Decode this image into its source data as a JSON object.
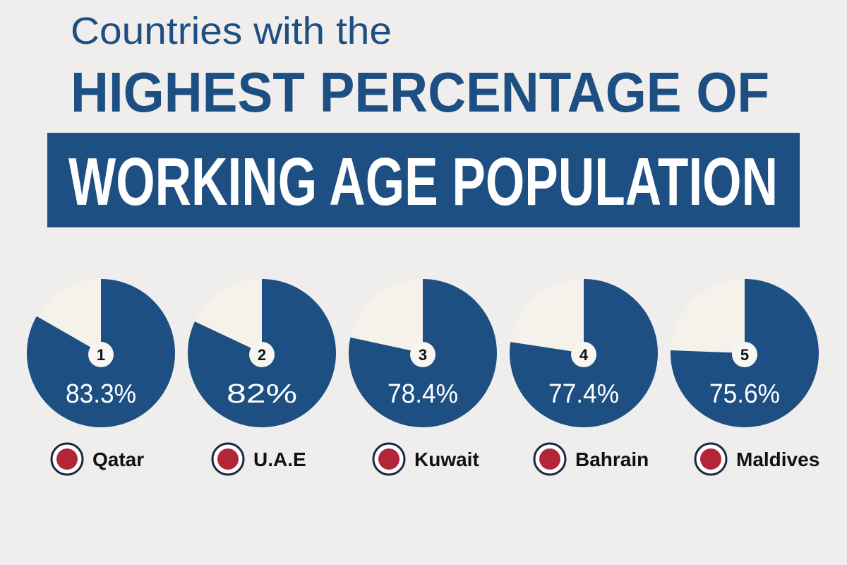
{
  "chart_data": {
    "type": "pie",
    "title": [
      "Countries with the",
      "HIGHEST PERCENTAGE OF",
      "WORKING AGE POPULATION"
    ],
    "categories": [
      "Qatar",
      "U.A.E",
      "Kuwait",
      "Bahrain",
      "Maldives"
    ],
    "ranks": [
      1,
      2,
      3,
      4,
      5
    ],
    "values": [
      83.3,
      82,
      78.4,
      77.4,
      75.6
    ],
    "value_labels": [
      "83.3%",
      "82%",
      "78.4%",
      "77.4%",
      "75.6%"
    ],
    "color": "#1d4f82",
    "rest_color": "#f4f2ea"
  }
}
